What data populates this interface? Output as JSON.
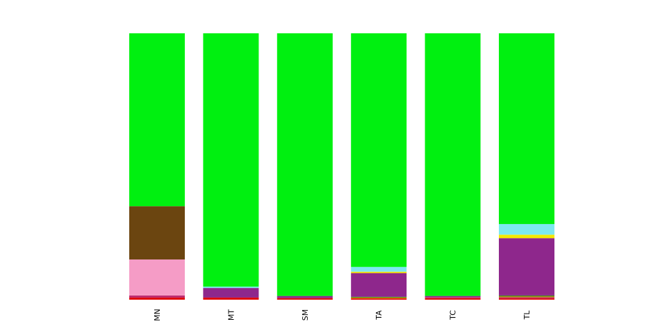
{
  "chart_data": {
    "type": "bar",
    "stacked": true,
    "normalized": true,
    "categories": [
      "MN",
      "MT",
      "SM",
      "TA",
      "TC",
      "TL"
    ],
    "ylim": [
      0,
      1
    ],
    "grid": false,
    "legend": "none",
    "series": [
      {
        "color": "#e00a0a",
        "values": [
          0.008,
          0.008,
          0.006,
          0.005,
          0.006,
          0.005
        ]
      },
      {
        "color": "#bd2a6f",
        "values": [
          0.008,
          0.0,
          0.0,
          0.0,
          0.004,
          0.004
        ]
      },
      {
        "color": "#d4a000",
        "values": [
          0.0,
          0.0,
          0.0,
          0.003,
          0.0,
          0.003
        ]
      },
      {
        "color": "#3c7a1f",
        "values": [
          0.0,
          0.0,
          0.0,
          0.003,
          0.0,
          0.004
        ]
      },
      {
        "color": "#f59cc6",
        "values": [
          0.135,
          0.0,
          0.0,
          0.0,
          0.0,
          0.0
        ]
      },
      {
        "color": "#8e278c",
        "values": [
          0.0,
          0.036,
          0.008,
          0.089,
          0.004,
          0.215
        ]
      },
      {
        "color": "#6b4510",
        "values": [
          0.2,
          0.0,
          0.0,
          0.0,
          0.0,
          0.0
        ]
      },
      {
        "color": "#f5e800",
        "values": [
          0.0,
          0.0,
          0.0,
          0.005,
          0.0,
          0.013
        ]
      },
      {
        "color": "#7de8f0",
        "values": [
          0.0,
          0.005,
          0.0,
          0.018,
          0.0,
          0.04
        ]
      },
      {
        "color": "#00f010",
        "values": [
          0.649,
          0.951,
          0.986,
          0.877,
          0.986,
          0.716
        ]
      }
    ]
  }
}
